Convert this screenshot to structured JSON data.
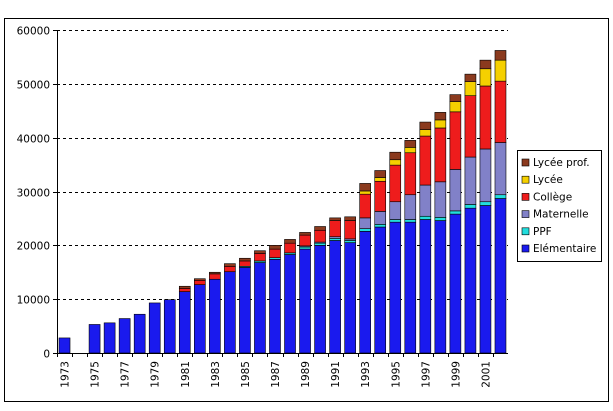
{
  "chart_data": {
    "type": "bar",
    "stacked": true,
    "title": "",
    "xlabel": "",
    "ylabel": "",
    "ylim": [
      0,
      60000
    ],
    "yticks": [
      "0",
      "10000",
      "20000",
      "30000",
      "40000",
      "50000",
      "60000"
    ],
    "grid": "horizontal-dashed",
    "legend_position": "right",
    "categories": [
      "1973",
      "1974",
      "1975",
      "1976",
      "1977",
      "1978",
      "1979",
      "1980",
      "1981",
      "1982",
      "1983",
      "1984",
      "1985",
      "1986",
      "1987",
      "1988",
      "1989",
      "1990",
      "1991",
      "1992",
      "1993",
      "1994",
      "1995",
      "1996",
      "1997",
      "1998",
      "1999",
      "2000",
      "2001",
      "2002"
    ],
    "xtick_labels": [
      "1973",
      "1975",
      "1977",
      "1979",
      "1981",
      "1983",
      "1985",
      "1987",
      "1989",
      "1991",
      "1993",
      "1995",
      "1997",
      "1999",
      "2001"
    ],
    "series": [
      {
        "name": "Elémentaire",
        "color": "#1a1aee",
        "values": [
          2800,
          0,
          5300,
          5600,
          6400,
          7200,
          9300,
          9900,
          11400,
          12700,
          13700,
          15100,
          15900,
          16800,
          17400,
          18300,
          19300,
          20000,
          20900,
          20500,
          22600,
          23400,
          24300,
          24300,
          24800,
          24600,
          25800,
          26900,
          27400,
          28700
        ]
      },
      {
        "name": "PPF",
        "color": "#22dddd",
        "values": [
          0,
          0,
          0,
          0,
          0,
          0,
          0,
          0,
          0,
          0,
          0,
          0,
          200,
          300,
          300,
          300,
          400,
          400,
          400,
          400,
          500,
          500,
          500,
          500,
          600,
          600,
          600,
          700,
          700,
          700
        ]
      },
      {
        "name": "Maternelle",
        "color": "#8181c8",
        "values": [
          0,
          0,
          0,
          0,
          0,
          0,
          0,
          0,
          0,
          0,
          0,
          0,
          0,
          0,
          0,
          0,
          200,
          200,
          300,
          300,
          2000,
          2400,
          3300,
          4600,
          5800,
          6600,
          7700,
          8800,
          9800,
          9700
        ]
      },
      {
        "name": "Collège",
        "color": "#ee1c1c",
        "values": [
          0,
          0,
          0,
          0,
          0,
          0,
          0,
          0,
          600,
          800,
          1000,
          1000,
          1000,
          1400,
          1600,
          1800,
          2000,
          2200,
          3000,
          3400,
          4400,
          5600,
          6800,
          7800,
          9100,
          10000,
          10700,
          11400,
          11700,
          11400
        ]
      },
      {
        "name": "Lycée",
        "color": "#f5d000",
        "values": [
          0,
          0,
          0,
          0,
          0,
          0,
          0,
          0,
          0,
          0,
          0,
          0,
          0,
          0,
          0,
          0,
          0,
          0,
          0,
          0,
          600,
          700,
          1000,
          1000,
          1200,
          1500,
          1900,
          2600,
          3200,
          3900
        ]
      },
      {
        "name": "Lycée prof.",
        "color": "#8b3a1e",
        "values": [
          0,
          0,
          0,
          0,
          0,
          0,
          0,
          0,
          400,
          300,
          300,
          500,
          500,
          500,
          700,
          700,
          500,
          700,
          500,
          700,
          1400,
          1300,
          1400,
          1300,
          1400,
          1400,
          1300,
          1400,
          1600,
          1800
        ]
      }
    ]
  }
}
